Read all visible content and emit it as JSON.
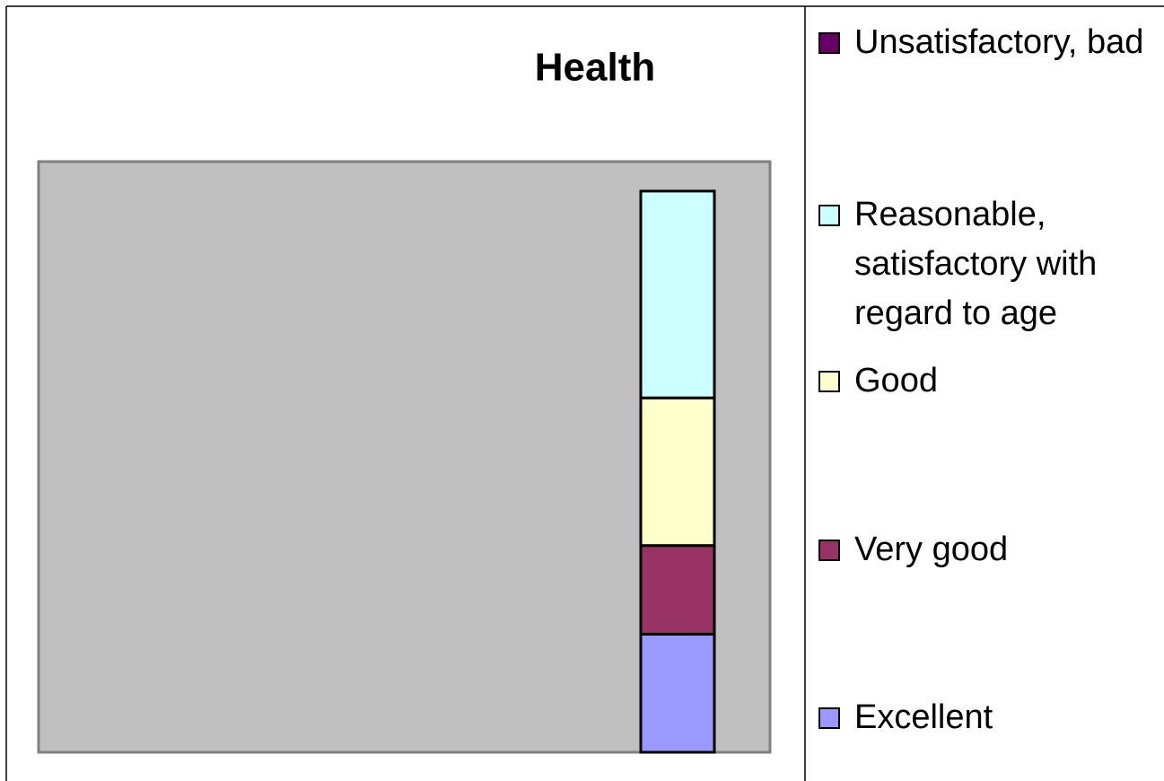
{
  "chart_data": {
    "type": "stacked_bar",
    "title": "Health",
    "categories": [
      null
    ],
    "series": [
      {
        "name": "Excellent",
        "color": "#9999ff",
        "values": [
          20
        ]
      },
      {
        "name": "Very good",
        "color": "#993366",
        "values": [
          15
        ]
      },
      {
        "name": "Good",
        "color": "#ffffcc",
        "values": [
          25
        ]
      },
      {
        "name": "Reasonable, satisfactory with regard to age",
        "color": "#ccffff",
        "values": [
          35
        ]
      },
      {
        "name": "Unsatisfactory, bad",
        "color": "#660066",
        "values": [
          0
        ]
      }
    ],
    "ylim": [
      0,
      100
    ],
    "legend": "right"
  }
}
